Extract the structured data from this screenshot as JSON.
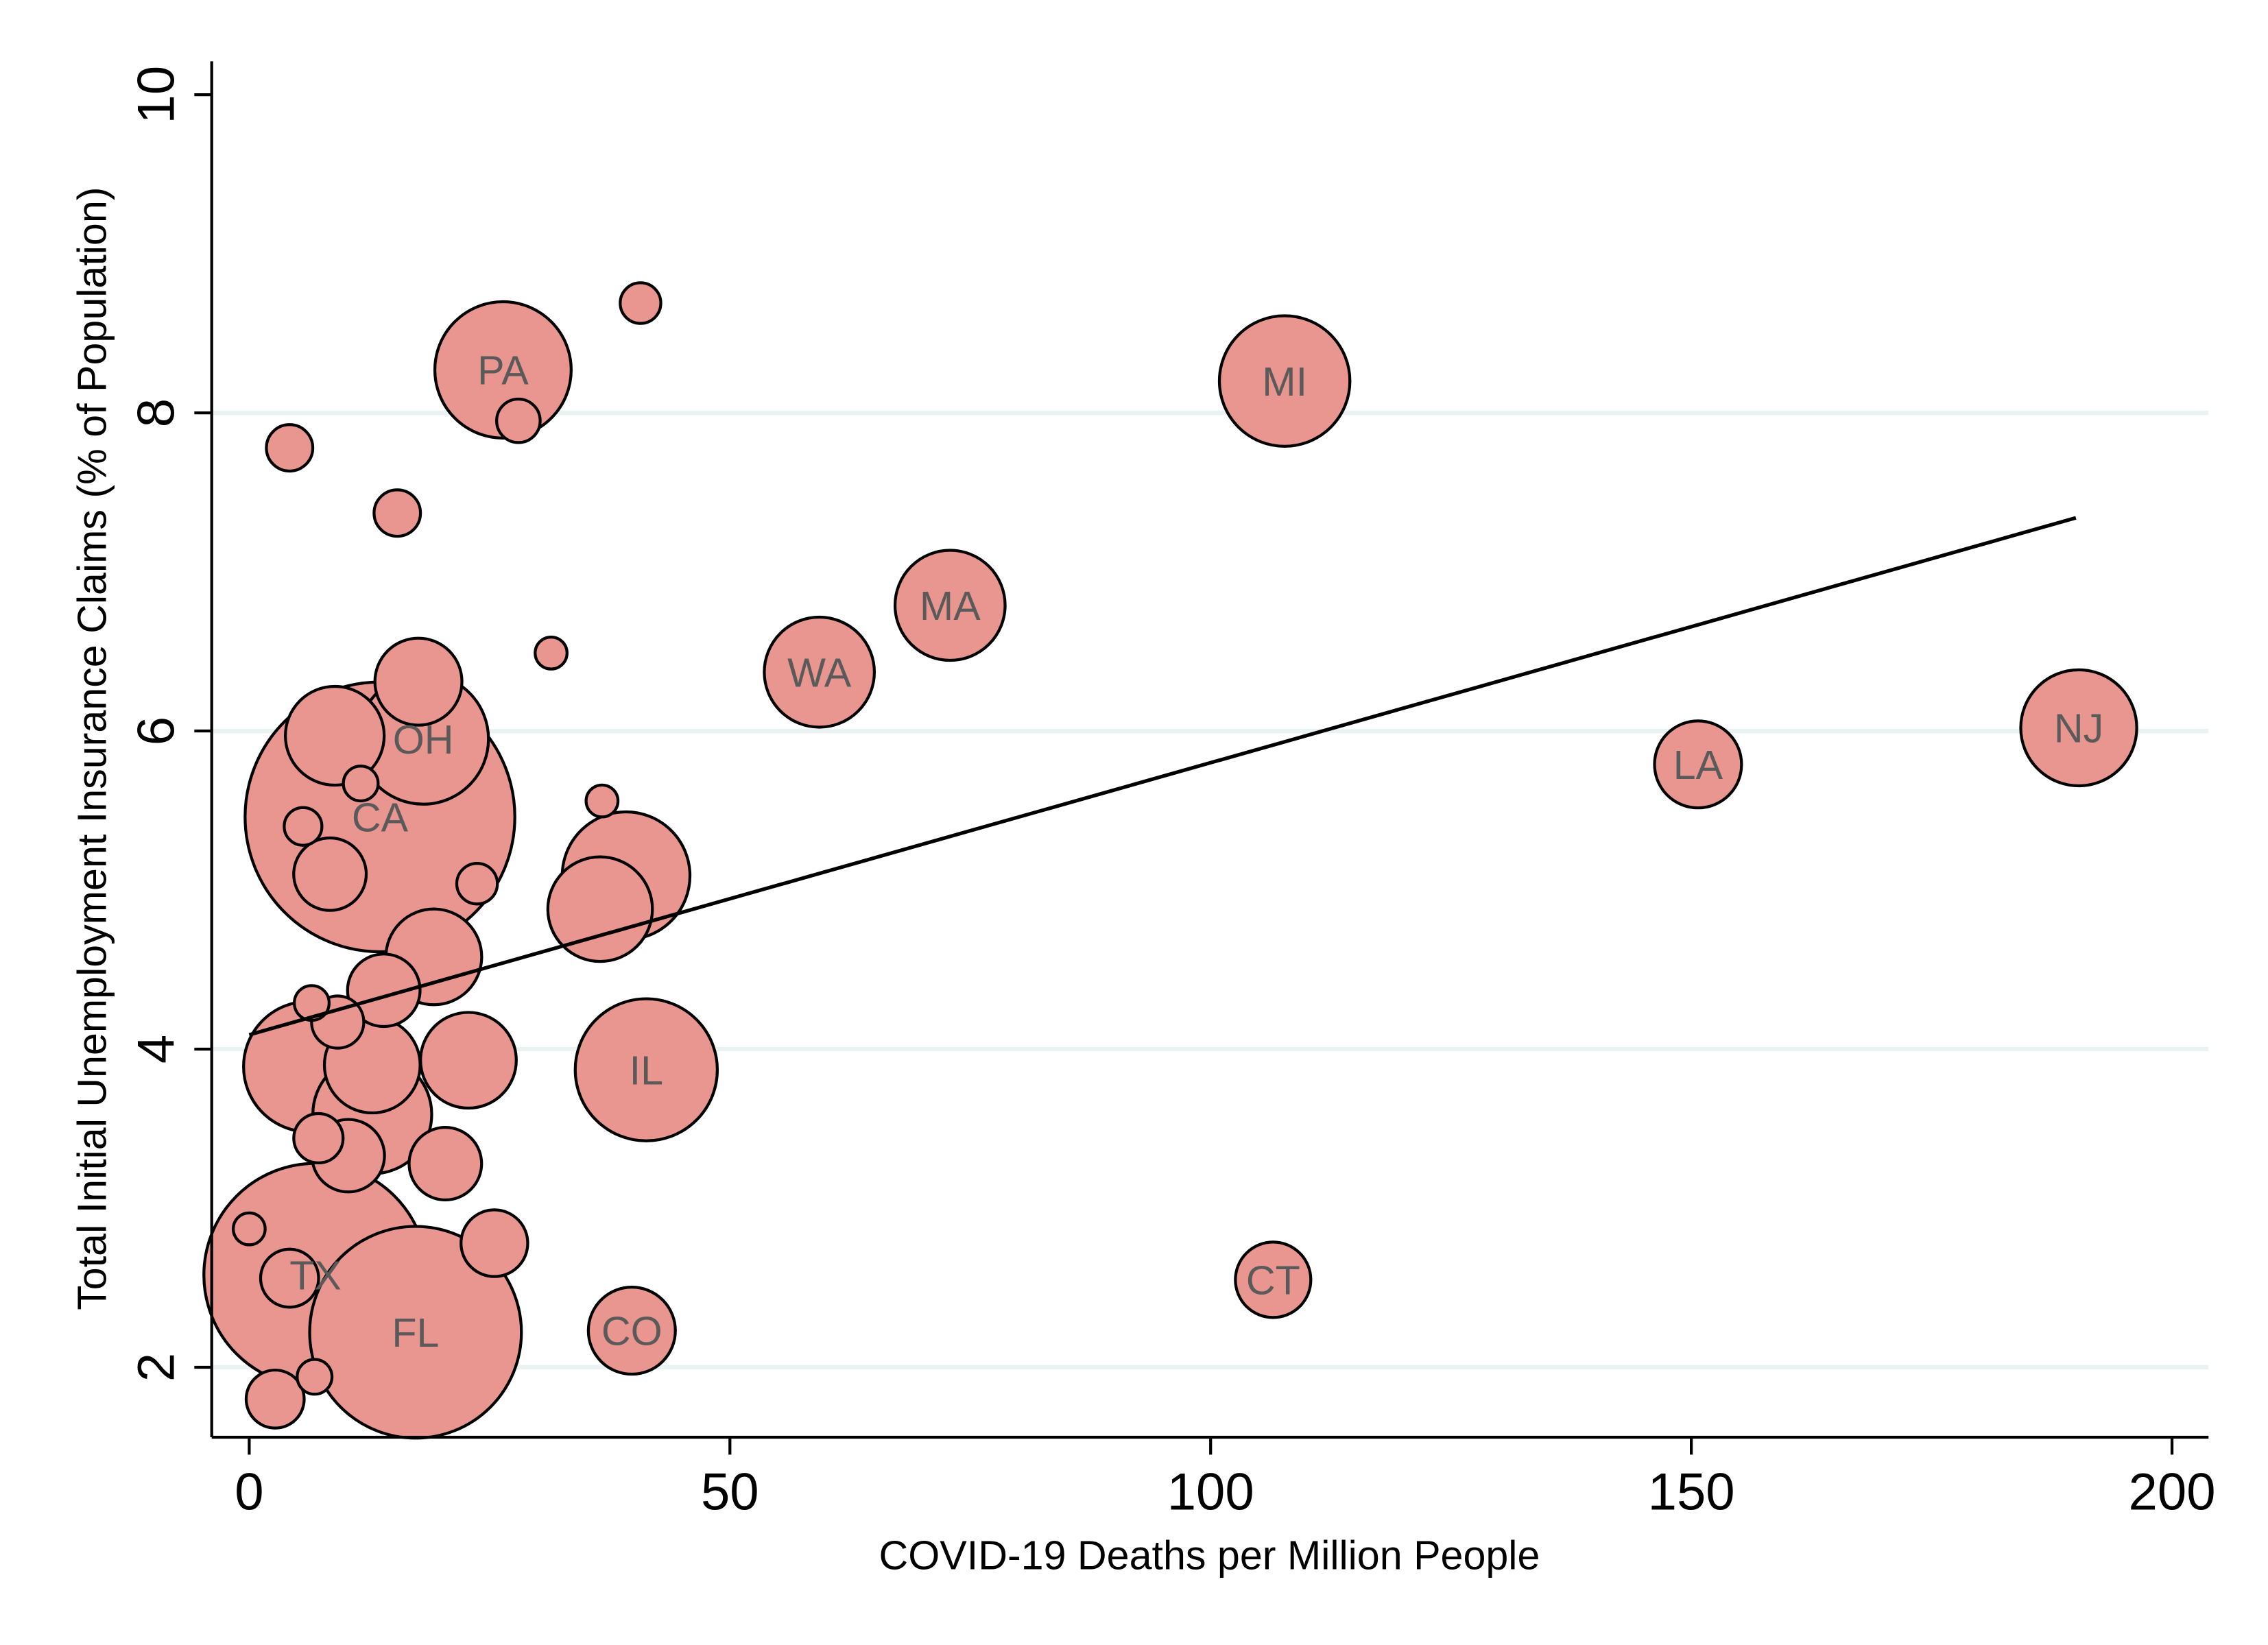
{
  "chart_data": {
    "type": "scatter",
    "subtype": "bubble",
    "xlabel": "COVID-19 Deaths per Million People",
    "ylabel": "Total Initial Unemployment Insurance Claims (% of Population)",
    "xlim": [
      -3.9,
      203.8
    ],
    "ylim": [
      1.56,
      10.21
    ],
    "xticks": [
      0,
      50,
      100,
      150,
      200
    ],
    "yticks": [
      2,
      4,
      6,
      8,
      10
    ],
    "grid": "horizontal",
    "colors": {
      "bubble_fill": "#E8968F",
      "bubble_stroke": "#000000",
      "label": "#5A5A5A",
      "grid": "#EAF2F3",
      "fit_line": "#000000"
    },
    "fit_line": {
      "x": [
        0,
        190
      ],
      "y": [
        4.09,
        7.34
      ]
    },
    "points": [
      {
        "label": "",
        "x": 40.7,
        "y": 8.69,
        "size": 1.96
      },
      {
        "label": "",
        "x": 28.0,
        "y": 7.95,
        "size": 2.25
      },
      {
        "label": "PA",
        "x": 26.4,
        "y": 8.27,
        "size": 22.1
      },
      {
        "label": "",
        "x": 4.2,
        "y": 7.78,
        "size": 2.56
      },
      {
        "label": "",
        "x": 15.4,
        "y": 7.37,
        "size": 2.56
      },
      {
        "label": "MI",
        "x": 107.7,
        "y": 8.2,
        "size": 20.25
      },
      {
        "label": "MA",
        "x": 72.9,
        "y": 6.79,
        "size": 14.4
      },
      {
        "label": "",
        "x": 31.4,
        "y": 6.49,
        "size": 1.21
      },
      {
        "label": "WA",
        "x": 59.3,
        "y": 6.37,
        "size": 14.4
      },
      {
        "label": "LA",
        "x": 150.7,
        "y": 5.79,
        "size": 9.0
      },
      {
        "label": "NJ",
        "x": 190.3,
        "y": 6.02,
        "size": 16.0
      },
      {
        "label": "CA",
        "x": 13.6,
        "y": 5.46,
        "size": 86.5
      },
      {
        "label": "",
        "x": 17.6,
        "y": 6.31,
        "size": 9.0
      },
      {
        "label": "",
        "x": 8.9,
        "y": 5.97,
        "size": 11.6
      },
      {
        "label": "",
        "x": 11.6,
        "y": 5.67,
        "size": 1.44
      },
      {
        "label": "OH",
        "x": 18.1,
        "y": 5.95,
        "size": 20.25
      },
      {
        "label": "",
        "x": 5.6,
        "y": 5.4,
        "size": 1.69
      },
      {
        "label": "",
        "x": 8.4,
        "y": 5.1,
        "size": 6.25
      },
      {
        "label": "",
        "x": 23.7,
        "y": 5.04,
        "size": 1.96
      },
      {
        "label": "",
        "x": 36.7,
        "y": 5.56,
        "size": 1.21
      },
      {
        "label": "",
        "x": 39.2,
        "y": 5.09,
        "size": 19.4
      },
      {
        "label": "",
        "x": 36.5,
        "y": 4.88,
        "size": 13.0
      },
      {
        "label": "",
        "x": 14.0,
        "y": 4.37,
        "size": 6.25
      },
      {
        "label": "",
        "x": 19.2,
        "y": 4.58,
        "size": 10.9
      },
      {
        "label": "",
        "x": 9.2,
        "y": 4.17,
        "size": 3.24
      },
      {
        "label": "",
        "x": 6.2,
        "y": 3.89,
        "size": 20.25
      },
      {
        "label": "",
        "x": 6.5,
        "y": 4.29,
        "size": 1.44
      },
      {
        "label": "",
        "x": 12.8,
        "y": 3.9,
        "size": 10.9
      },
      {
        "label": "",
        "x": 22.8,
        "y": 3.93,
        "size": 10.9
      },
      {
        "label": "IL",
        "x": 41.3,
        "y": 3.87,
        "size": 24.0
      },
      {
        "label": "",
        "x": 7.2,
        "y": 3.44,
        "size": 2.89
      },
      {
        "label": "",
        "x": 10.3,
        "y": 3.33,
        "size": 6.25
      },
      {
        "label": "",
        "x": 20.4,
        "y": 3.28,
        "size": 6.25
      },
      {
        "label": "",
        "x": 12.8,
        "y": 3.59,
        "size": 16.8
      },
      {
        "label": "",
        "x": 25.5,
        "y": 2.78,
        "size": 5.29
      },
      {
        "label": "TX",
        "x": 6.9,
        "y": 2.58,
        "size": 59.3
      },
      {
        "label": "FL",
        "x": 17.3,
        "y": 2.22,
        "size": 53.3
      },
      {
        "label": "",
        "x": 0.0,
        "y": 2.87,
        "size": 1.21
      },
      {
        "label": "",
        "x": 4.2,
        "y": 2.56,
        "size": 4.0
      },
      {
        "label": "CO",
        "x": 39.8,
        "y": 2.23,
        "size": 9.0
      },
      {
        "label": "CT",
        "x": 106.5,
        "y": 2.55,
        "size": 6.76
      },
      {
        "label": "",
        "x": 6.8,
        "y": 1.94,
        "size": 1.44
      },
      {
        "label": "",
        "x": 2.7,
        "y": 1.8,
        "size": 4.0
      }
    ]
  }
}
